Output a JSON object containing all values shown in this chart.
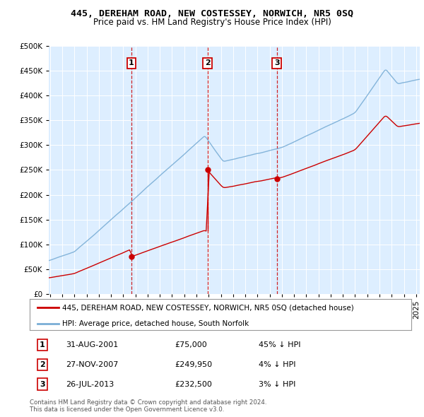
{
  "title": "445, DEREHAM ROAD, NEW COSTESSEY, NORWICH, NR5 0SQ",
  "subtitle": "Price paid vs. HM Land Registry's House Price Index (HPI)",
  "hpi_label": "HPI: Average price, detached house, South Norfolk",
  "property_label": "445, DEREHAM ROAD, NEW COSTESSEY, NORWICH, NR5 0SQ (detached house)",
  "property_color": "#cc0000",
  "hpi_color": "#7aaed6",
  "vline_color": "#cc0000",
  "background_color": "#ffffff",
  "plot_bg_color": "#ddeeff",
  "grid_color": "#ffffff",
  "ylim": [
    0,
    500000
  ],
  "yticks": [
    0,
    50000,
    100000,
    150000,
    200000,
    250000,
    300000,
    350000,
    400000,
    450000,
    500000
  ],
  "sale_years": [
    2001.667,
    2007.917,
    2013.583
  ],
  "sale_prices": [
    75000,
    249950,
    232500
  ],
  "sale_labels": [
    "1",
    "2",
    "3"
  ],
  "footer": "Contains HM Land Registry data © Crown copyright and database right 2024.\nThis data is licensed under the Open Government Licence v3.0.",
  "xstart": 1994.9,
  "xend": 2025.3
}
